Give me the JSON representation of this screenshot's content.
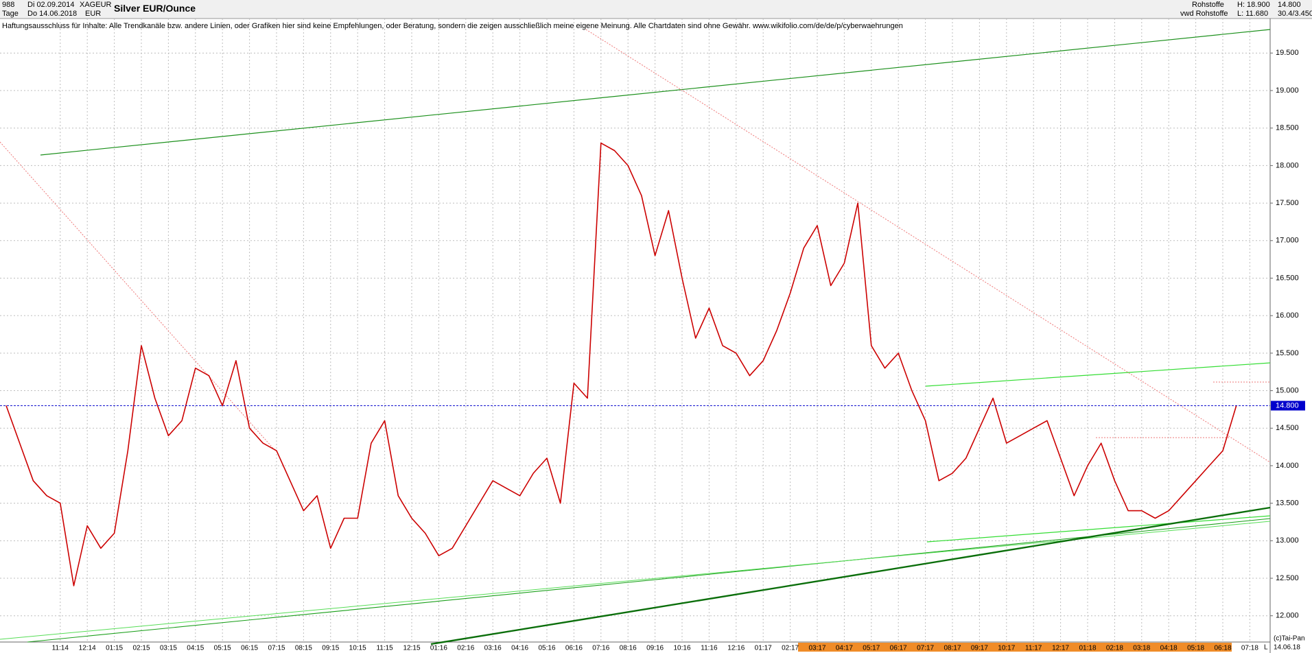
{
  "header": {
    "code": "988",
    "from": "Di 02.09.2014",
    "symbol": "XAGEUR",
    "period": "Tage",
    "to": "Do 14.06.2018",
    "currency": "EUR",
    "group": "Rohstoffe",
    "source": "vwd Rohstoffe",
    "high": "H: 18.900",
    "low": "L: 11.680",
    "last": "14.800",
    "extra": "30.4/3.450"
  },
  "disclaimer": "Haftungsausschluss für Inhalte: Alle Trendkanäle bzw. andere Linien, oder Grafiken hier sind keine Empfehlungen, oder Beratung, sondern die zeigen ausschließlich meine eigene Meinung. Alle Chartdaten sind ohne Gewähr.  www.wikifolio.com/de/de/p/cyberwaehrungen",
  "footer": {
    "copyright": "(c)Tai-Pan",
    "date": "14.06.18",
    "mode": "L"
  },
  "chart_data": {
    "type": "line",
    "title": "Silver EUR/Ounce",
    "categories": [
      null,
      null,
      null,
      null,
      "11:14",
      null,
      "12:14",
      null,
      "01:15",
      null,
      "02:15",
      null,
      "03:15",
      null,
      "04:15",
      null,
      "05:15",
      null,
      "06:15",
      null,
      "07:15",
      null,
      "08:15",
      null,
      "09:15",
      null,
      "10:15",
      null,
      "11:15",
      null,
      "12:15",
      null,
      "01:16",
      null,
      "02:16",
      null,
      "03:16",
      null,
      "04:16",
      null,
      "05:16",
      null,
      "06:16",
      null,
      "07:16",
      null,
      "08:16",
      null,
      "09:16",
      null,
      "10:16",
      null,
      "11:16",
      null,
      "12:16",
      null,
      "01:17",
      null,
      "02:17",
      null,
      "03:17",
      null,
      "04:17",
      null,
      "05:17",
      null,
      "06:17",
      null,
      "07:17",
      null,
      "08:17",
      null,
      "09:17",
      null,
      "10:17",
      null,
      "11:17",
      null,
      "12:17",
      null,
      "01:18",
      null,
      "02:18",
      null,
      "03:18",
      null,
      "04:18",
      null,
      "05:18",
      null,
      "06:18",
      null,
      "07:18"
    ],
    "series": [
      {
        "color": "#cc0000",
        "values": [
          14.8,
          14.3,
          13.8,
          13.6,
          13.5,
          12.4,
          13.2,
          12.9,
          13.1,
          14.2,
          15.6,
          14.9,
          14.4,
          14.6,
          15.3,
          15.2,
          14.8,
          15.4,
          14.5,
          14.3,
          14.2,
          13.8,
          13.4,
          13.6,
          12.9,
          13.3,
          13.3,
          14.3,
          14.6,
          13.6,
          13.3,
          13.1,
          12.8,
          12.9,
          13.2,
          13.5,
          13.8,
          13.7,
          13.6,
          13.9,
          14.1,
          13.5,
          15.1,
          14.9,
          18.3,
          18.2,
          18.0,
          17.6,
          16.8,
          17.4,
          16.5,
          15.7,
          16.1,
          15.6,
          15.5,
          15.2,
          15.4,
          15.8,
          16.3,
          16.9,
          17.2,
          16.4,
          16.7,
          17.5,
          15.6,
          15.3,
          15.5,
          15.0,
          14.6,
          13.8,
          13.9,
          14.1,
          14.5,
          14.9,
          14.3,
          14.4,
          14.5,
          14.6,
          14.1,
          13.6,
          14.0,
          14.3,
          13.8,
          13.4,
          13.4,
          13.3,
          13.4,
          13.6,
          13.8,
          14.0,
          14.2,
          14.8,
          null
        ]
      }
    ],
    "current_price": {
      "value": 14.8,
      "label": "14.800",
      "color": "#0000cc"
    },
    "ylim": [
      11.65,
      19.96
    ],
    "yticks": [
      {
        "value": 12,
        "label": "12.000"
      },
      {
        "value": 12.5,
        "label": "12.500"
      },
      {
        "value": 13,
        "label": "13.000"
      },
      {
        "value": 13.5,
        "label": "13.500"
      },
      {
        "value": 14,
        "label": "14.000"
      },
      {
        "value": 14.5,
        "label": "14.500"
      },
      {
        "value": 15,
        "label": "15.000"
      },
      {
        "value": 15.5,
        "label": "15.500"
      },
      {
        "value": 16,
        "label": "16.000"
      },
      {
        "value": 16.5,
        "label": "16.500"
      },
      {
        "value": 17,
        "label": "17.000"
      },
      {
        "value": 17.5,
        "label": "17.500"
      },
      {
        "value": 18,
        "label": "18.000"
      },
      {
        "value": 18.5,
        "label": "18.500"
      },
      {
        "value": 19,
        "label": "19.000"
      },
      {
        "value": 19.5,
        "label": "19.500"
      }
    ],
    "grid": true
  }
}
